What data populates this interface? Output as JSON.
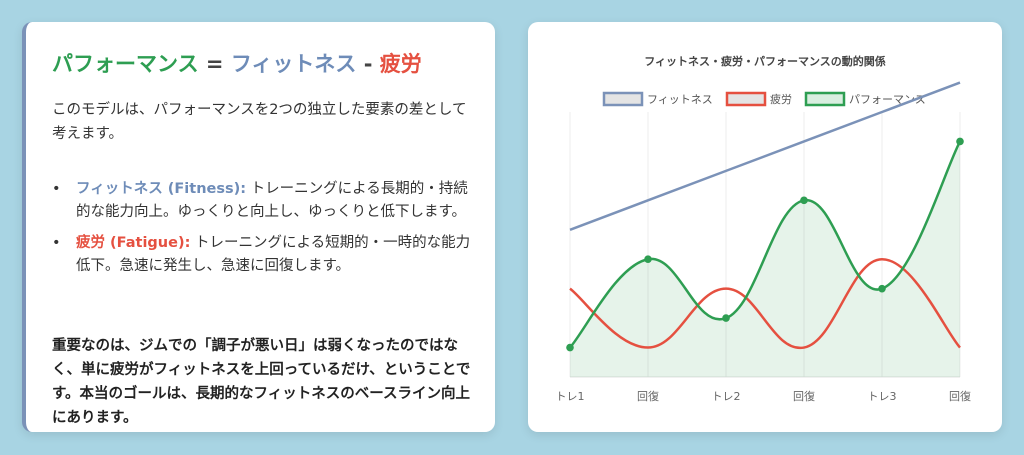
{
  "panel": {
    "title": {
      "performance": "パフォーマンス",
      "equals": "=",
      "fitness": "フィットネス",
      "minus": "-",
      "fatigue": "疲労"
    },
    "intro": "このモデルは、パフォーマンスを2つの独立した要素の差として考えます。",
    "points": [
      {
        "term": "フィットネス (Fitness):",
        "text": " トレーニングによる長期的・持続的な能力向上。ゆっくりと向上し、ゆっくりと低下します。"
      },
      {
        "term": "疲労 (Fatigue):",
        "text": " トレーニングによる短期的・一時的な能力低下。急速に発生し、急速に回復します。"
      }
    ],
    "key_point": "重要なのは、ジムでの「調子が悪い日」は弱くなったのではなく、単に疲労がフィットネスを上回っているだけ、ということです。本当のゴールは、長期的なフィットネスのベースライン向上にあります。"
  },
  "chart_data": {
    "type": "line",
    "title": "フィットネス・疲労・パフォーマンスの動的関係",
    "categories": [
      "トレ1",
      "回復",
      "トレ2",
      "回復",
      "トレ3",
      "回復"
    ],
    "series": [
      {
        "name": "フィットネス",
        "values": [
          10,
          20,
          30,
          40,
          50,
          60
        ],
        "color": "#7b92b8",
        "fill": false,
        "markers": false
      },
      {
        "name": "疲労",
        "values": [
          -10,
          -30,
          -10,
          -30,
          0,
          -30
        ],
        "color": "#e55040",
        "fill": false,
        "markers": false
      },
      {
        "name": "パフォーマンス",
        "values": [
          -30,
          0,
          -20,
          20,
          -10,
          40
        ],
        "color": "#2e9e52",
        "fill": true,
        "markers": true
      }
    ],
    "ylim": [
      -40,
      50
    ],
    "grid": true,
    "legend": "top"
  }
}
